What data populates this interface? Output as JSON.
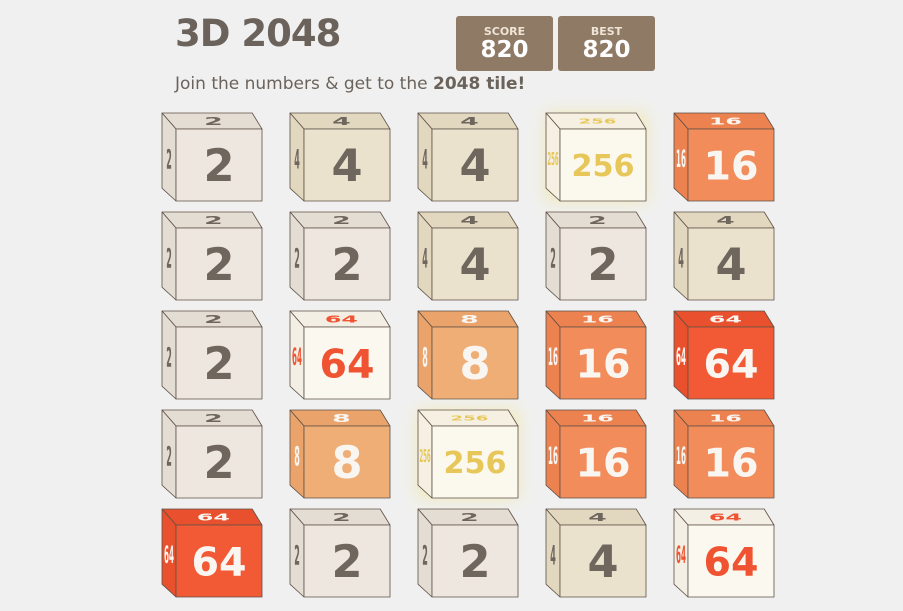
{
  "header": {
    "title": "3D 2048",
    "score_label": "SCORE",
    "score": "820",
    "best_label": "BEST",
    "best": "820",
    "subtitle_prefix": "Join the numbers & get to the ",
    "subtitle_bold": "2048 tile!"
  },
  "tiles": [
    2,
    4,
    4,
    256,
    16,
    2,
    2,
    4,
    2,
    4,
    2,
    64,
    8,
    16,
    64,
    2,
    8,
    256,
    16,
    16,
    64,
    2,
    2,
    4,
    64
  ],
  "colors": {
    "2": {
      "face": "#ede7df",
      "side": "#e4ddd3",
      "text": "#6f665e"
    },
    "4": {
      "face": "#ebe2cd",
      "side": "#e2d8c0",
      "text": "#6f665e"
    },
    "8": {
      "face": "#f0ae77",
      "side": "#eaa46b",
      "text": "#f9f6f2"
    },
    "16": {
      "face": "#f28c5a",
      "side": "#ec8250",
      "text": "#f9f6f2"
    },
    "64": {
      "face": "#f15a35",
      "side": "#e9502d",
      "text": "#f9f6f2"
    },
    "64w": {
      "face": "#fbf8f0",
      "side": "#f4efe4",
      "text": "#ef5331"
    },
    "256": {
      "face": "#fbf8ee",
      "side": "#f5f0e2",
      "text": "#e8c75a"
    }
  }
}
